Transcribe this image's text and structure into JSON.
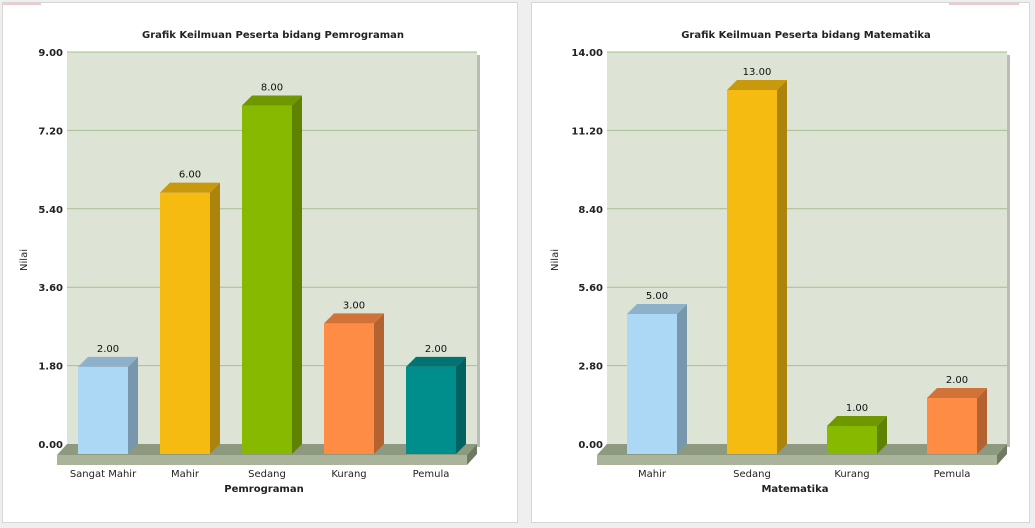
{
  "chart_data": [
    {
      "type": "bar",
      "title": "Grafik Keilmuan Peserta bidang Pemrograman",
      "xlabel": "Pemrograman",
      "ylabel": "Nilai",
      "categories": [
        "Sangat Mahir",
        "Mahir",
        "Sedang",
        "Kurang",
        "Pemula"
      ],
      "values": [
        2,
        6,
        8,
        3,
        2
      ],
      "value_labels": [
        "2.00",
        "6.00",
        "8.00",
        "3.00",
        "2.00"
      ],
      "yticks": [
        "0.00",
        "1.80",
        "3.60",
        "5.40",
        "7.20",
        "9.00"
      ],
      "ylim": [
        0,
        9
      ],
      "colors": [
        "#acd8f6",
        "#f5bb10",
        "#87b900",
        "#ff8c45",
        "#008e8c"
      ],
      "grid": true
    },
    {
      "type": "bar",
      "title": "Grafik Keilmuan Peserta bidang Matematika",
      "xlabel": "Matematika",
      "ylabel": "Nilai",
      "categories": [
        "Mahir",
        "Sedang",
        "Kurang",
        "Pemula"
      ],
      "values": [
        5,
        13,
        1,
        2
      ],
      "value_labels": [
        "5.00",
        "13.00",
        "1.00",
        "2.00"
      ],
      "yticks": [
        "0.00",
        "2.80",
        "5.60",
        "8.40",
        "11.20",
        "14.00"
      ],
      "ylim": [
        0,
        14
      ],
      "colors": [
        "#acd8f6",
        "#f5bb10",
        "#87b900",
        "#ff8c45"
      ],
      "grid": true
    }
  ]
}
